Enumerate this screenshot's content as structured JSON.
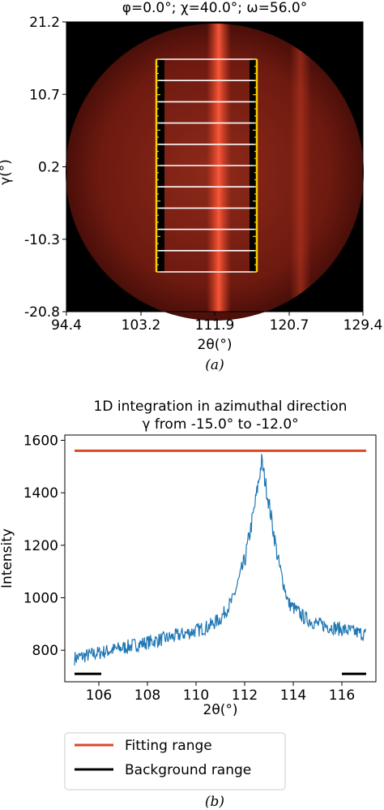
{
  "panel_a": {
    "title": "φ=0.0°; χ=40.0°; ω=56.0°",
    "xlabel": "2θ(°)",
    "ylabel": "γ(°)",
    "x_ticks": [
      "94.4",
      "103.2",
      "111.9",
      "120.7",
      "129.4"
    ],
    "y_ticks": [
      "21.2",
      "10.7",
      "0.2",
      "-10.3",
      "-20.8"
    ],
    "caption": "(a)",
    "colors": {
      "background": "#000000",
      "detector": "#8a1c10",
      "ring": "#e8452a",
      "slice_lines": "#ffffff",
      "range_marks": "#f5d000"
    }
  },
  "panel_b": {
    "caption": "(b)",
    "legend": {
      "placement": "below-plot",
      "fitting_label": "Fitting range",
      "background_label": "Background range"
    }
  },
  "chart_data": [
    {
      "type": "heatmap",
      "title": "φ=0.0°; χ=40.0°; ω=56.0°",
      "xlabel": "2θ(°)",
      "ylabel": "γ(°)",
      "xlim": [
        94.4,
        129.4
      ],
      "ylim": [
        -20.8,
        21.2
      ],
      "x_ticks": [
        94.4,
        103.2,
        111.9,
        120.7,
        129.4
      ],
      "y_ticks": [
        21.2,
        10.7,
        0.2,
        -10.3,
        -20.8
      ],
      "ring_center_2theta": 112.6,
      "integration_window_2theta": [
        105.0,
        117.0
      ],
      "integration_window_gamma": [
        -15.0,
        15.0
      ],
      "slice_step_gamma": 3.0
    },
    {
      "type": "line",
      "title": "1D integration in azimuthal direction",
      "subtitle": "γ from -15.0° to -12.0°",
      "xlabel": "2θ(°)",
      "ylabel": "Intensity",
      "xlim": [
        104.6,
        117.4
      ],
      "ylim": [
        680,
        1620
      ],
      "x_ticks": [
        106,
        108,
        110,
        112,
        114,
        116
      ],
      "y_ticks": [
        800,
        1000,
        1200,
        1400,
        1600
      ],
      "grid": false,
      "profile_points": [
        {
          "x": 105.0,
          "y": 770
        },
        {
          "x": 106.0,
          "y": 790
        },
        {
          "x": 107.0,
          "y": 810
        },
        {
          "x": 108.0,
          "y": 830
        },
        {
          "x": 109.0,
          "y": 850
        },
        {
          "x": 110.0,
          "y": 875
        },
        {
          "x": 110.5,
          "y": 890
        },
        {
          "x": 111.0,
          "y": 920
        },
        {
          "x": 111.5,
          "y": 990
        },
        {
          "x": 112.0,
          "y": 1140
        },
        {
          "x": 112.4,
          "y": 1340
        },
        {
          "x": 112.7,
          "y": 1520
        },
        {
          "x": 113.0,
          "y": 1360
        },
        {
          "x": 113.4,
          "y": 1130
        },
        {
          "x": 113.8,
          "y": 980
        },
        {
          "x": 114.5,
          "y": 920
        },
        {
          "x": 115.0,
          "y": 900
        },
        {
          "x": 116.0,
          "y": 880
        },
        {
          "x": 117.0,
          "y": 860
        }
      ],
      "series": [
        {
          "name": "Fitting range",
          "color": "#d94a2a",
          "x": [
            105.0,
            117.0
          ],
          "y": [
            1560,
            1560
          ]
        },
        {
          "name": "Background range",
          "color": "#000000",
          "segments": [
            {
              "x": [
                105.0,
                106.1
              ],
              "y": [
                710,
                710
              ]
            },
            {
              "x": [
                116.0,
                117.0
              ],
              "y": [
                710,
                710
              ]
            }
          ]
        }
      ],
      "profile_color": "#1f77b4"
    }
  ]
}
